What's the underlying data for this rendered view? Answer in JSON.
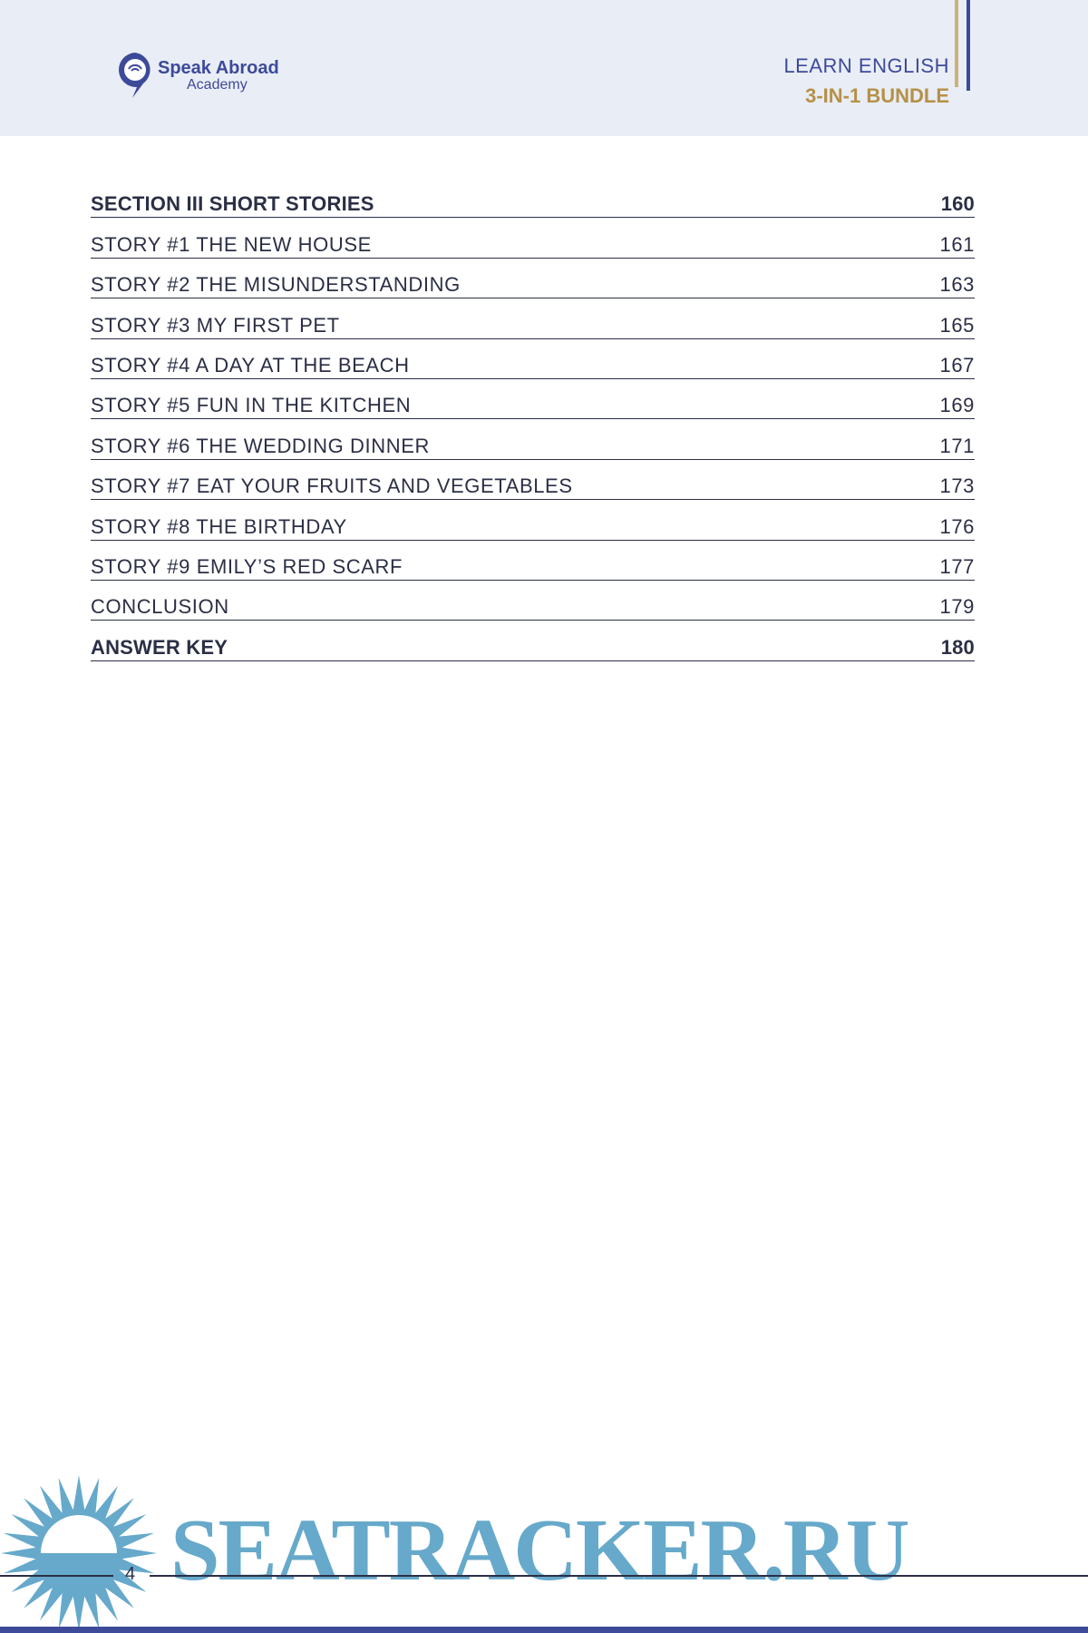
{
  "header": {
    "logo": {
      "name": "Speak Abroad",
      "sub": "Academy"
    },
    "title_line1": "LEARN ENGLISH",
    "title_line2": "3-IN-1 BUNDLE",
    "colors": {
      "navy": "#3d4a99",
      "gold": "#b59148",
      "band": "#e9edf6"
    }
  },
  "toc": [
    {
      "label": "SECTION III  SHORT STORIES",
      "page": "160",
      "bold": true
    },
    {
      "label": "STORY #1  THE NEW HOUSE",
      "page": "161"
    },
    {
      "label": "STORY #2  THE MISUNDERSTANDING",
      "page": "163"
    },
    {
      "label": "STORY #3  MY FIRST PET",
      "page": "165"
    },
    {
      "label": "STORY #4  A DAY AT THE BEACH",
      "page": "167"
    },
    {
      "label": "STORY #5  FUN IN THE KITCHEN",
      "page": "169"
    },
    {
      "label": "STORY #6  THE WEDDING DINNER",
      "page": "171"
    },
    {
      "label": "STORY #7  EAT YOUR FRUITS AND VEGETABLES",
      "page": "173"
    },
    {
      "label": "STORY #8  THE BIRTHDAY",
      "page": "176"
    },
    {
      "label": "STORY #9  EMILY’S RED SCARF",
      "page": "177"
    },
    {
      "label": "CONCLUSION",
      "page": "179"
    },
    {
      "label": "ANSWER KEY",
      "page": "180",
      "bold": true
    }
  ],
  "footer": {
    "page_number": "4"
  },
  "watermark": {
    "text": "SEATRACKER.RU",
    "color": "#66a9cb"
  }
}
